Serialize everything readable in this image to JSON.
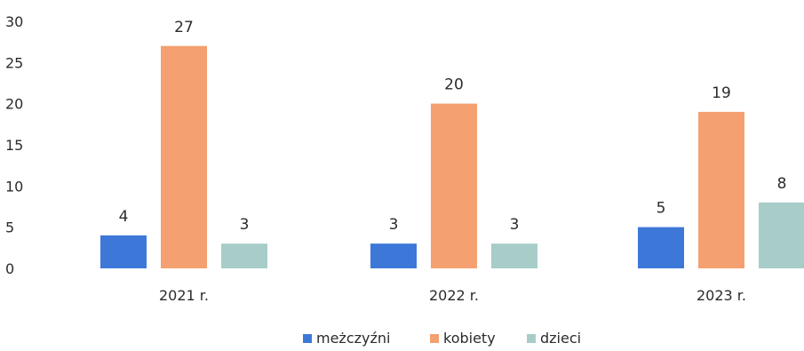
{
  "chart_data": {
    "type": "bar",
    "title": "",
    "xlabel": "",
    "ylabel": "",
    "categories": [
      "2021 r.",
      "2022 r.",
      "2023 r."
    ],
    "series": [
      {
        "name": "meżczyźni",
        "values": [
          4,
          3,
          5
        ],
        "color": "#3d78d8"
      },
      {
        "name": "kobiety",
        "values": [
          27,
          20,
          19
        ],
        "color": "#f4a070"
      },
      {
        "name": "dzieci",
        "values": [
          3,
          3,
          8
        ],
        "color": "#a8cdc9"
      }
    ],
    "ylim": [
      0,
      30
    ],
    "yticks": [
      "0",
      "5",
      "10",
      "15",
      "20",
      "25",
      "30"
    ],
    "grid": false,
    "legend_position": "bottom",
    "data_labels": true
  }
}
